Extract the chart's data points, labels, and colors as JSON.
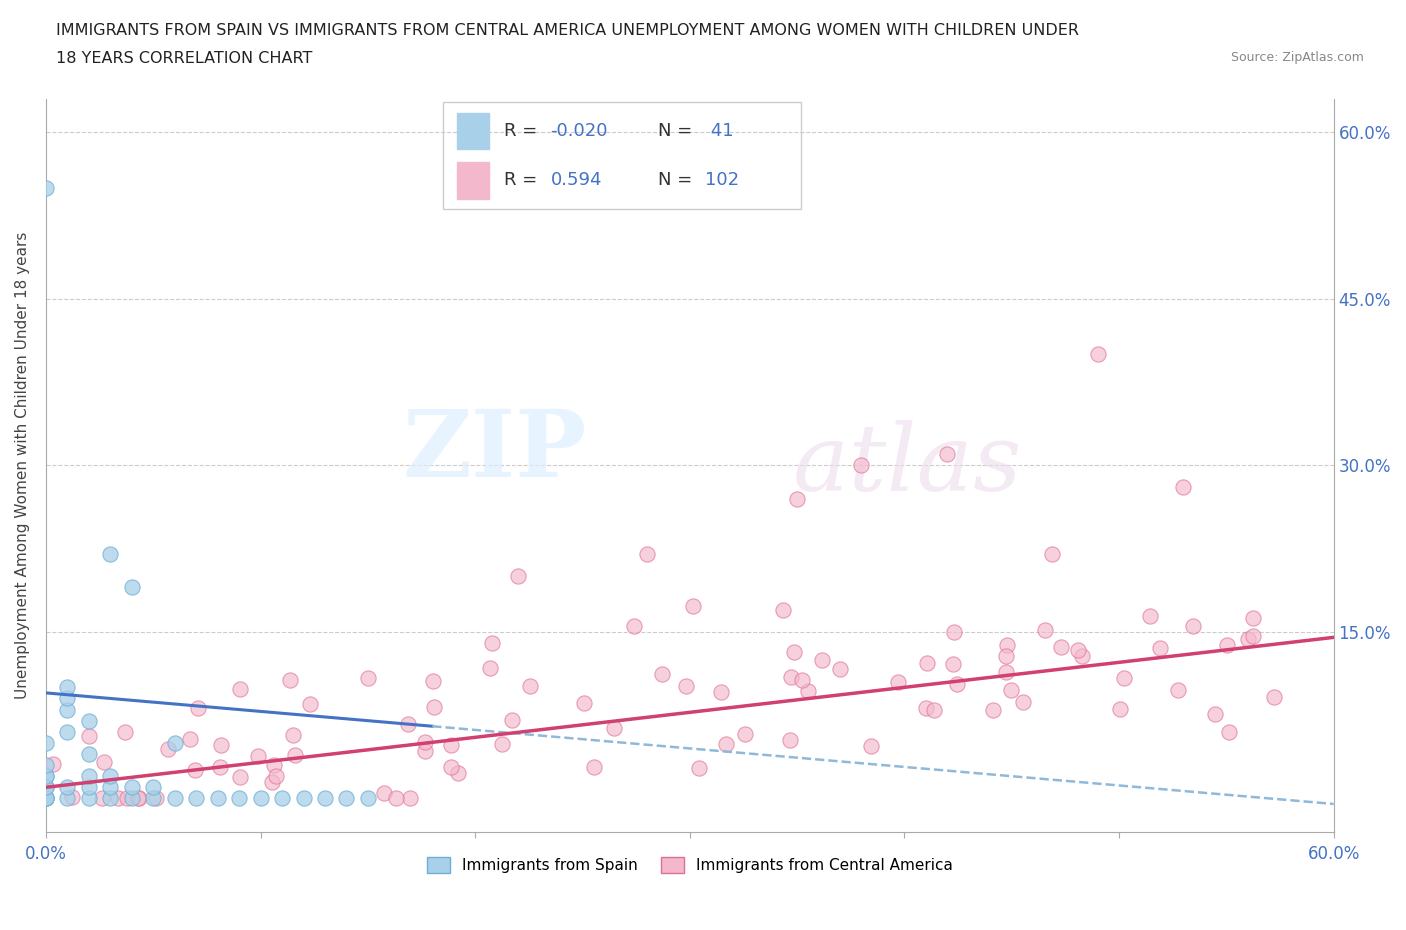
{
  "title_line1": "IMMIGRANTS FROM SPAIN VS IMMIGRANTS FROM CENTRAL AMERICA UNEMPLOYMENT AMONG WOMEN WITH CHILDREN UNDER",
  "title_line2": "18 YEARS CORRELATION CHART",
  "source": "Source: ZipAtlas.com",
  "ylabel": "Unemployment Among Women with Children Under 18 years",
  "color_spain": "#a8d0e8",
  "color_spain_edge": "#6baed6",
  "color_central": "#f4b8cc",
  "color_central_edge": "#e07090",
  "color_spain_line": "#4472c4",
  "color_central_line": "#d04070",
  "color_dashed": "#90b8d8",
  "watermark_zip": "ZIP",
  "watermark_atlas": "atlas",
  "legend_r1": "R = -0.020",
  "legend_n1": "N =  41",
  "legend_r2": "R =  0.594",
  "legend_n2": "N = 102"
}
